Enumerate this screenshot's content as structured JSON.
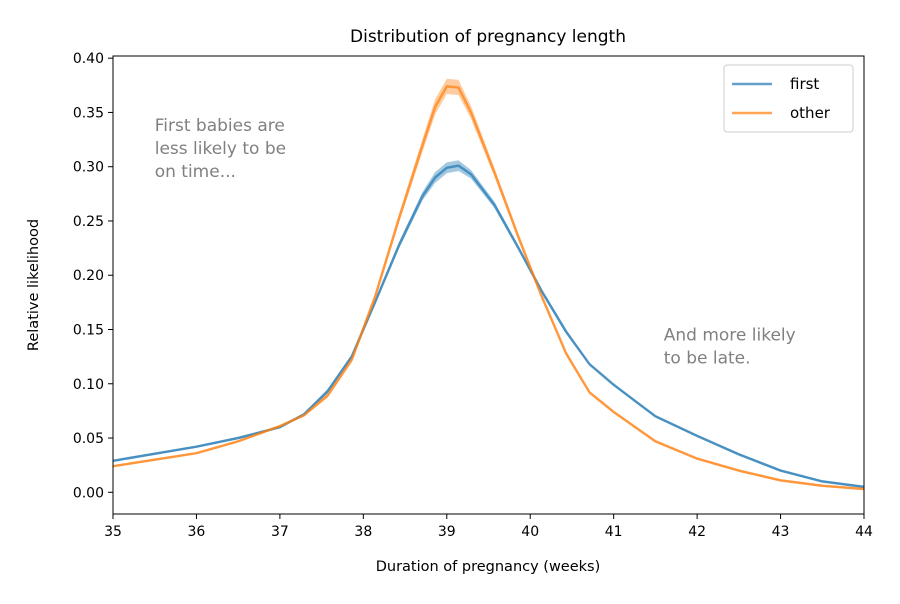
{
  "chart_data": {
    "type": "line",
    "title": "Distribution of pregnancy length",
    "xlabel": "Duration of pregnancy (weeks)",
    "ylabel": "Relative likelihood",
    "xlim": [
      35,
      44
    ],
    "ylim": [
      -0.02,
      0.402
    ],
    "xticks": [
      "35",
      "36",
      "37",
      "38",
      "39",
      "40",
      "41",
      "42",
      "43",
      "44"
    ],
    "yticks": [
      "0.00",
      "0.05",
      "0.10",
      "0.15",
      "0.20",
      "0.25",
      "0.30",
      "0.35",
      "0.40"
    ],
    "grid": false,
    "legend_position": "top-right",
    "x": [
      35,
      36,
      36.5,
      37,
      37.29,
      37.57,
      37.86,
      38.14,
      38.43,
      38.71,
      38.86,
      39,
      39.14,
      39.29,
      39.57,
      39.86,
      40.14,
      40.43,
      40.71,
      41,
      41.5,
      42,
      42.5,
      43,
      43.5,
      44
    ],
    "series": [
      {
        "name": "first",
        "color": "#1f77b4",
        "values": [
          0.029,
          0.042,
          0.05,
          0.06,
          0.072,
          0.093,
          0.125,
          0.175,
          0.228,
          0.273,
          0.29,
          0.299,
          0.301,
          0.293,
          0.265,
          0.225,
          0.185,
          0.148,
          0.118,
          0.099,
          0.07,
          0.052,
          0.035,
          0.02,
          0.01,
          0.005
        ],
        "ci_halfwidth": [
          0.001,
          0.001,
          0.001,
          0.001,
          0.001,
          0.002,
          0.002,
          0.002,
          0.003,
          0.004,
          0.005,
          0.005,
          0.005,
          0.004,
          0.003,
          0.002,
          0.002,
          0.002,
          0.001,
          0.001,
          0.001,
          0.001,
          0.001,
          0.001,
          0.001,
          0.001
        ]
      },
      {
        "name": "other",
        "color": "#ff7f0e",
        "values": [
          0.024,
          0.036,
          0.047,
          0.061,
          0.071,
          0.089,
          0.122,
          0.18,
          0.253,
          0.32,
          0.355,
          0.374,
          0.373,
          0.35,
          0.295,
          0.235,
          0.18,
          0.128,
          0.092,
          0.074,
          0.047,
          0.031,
          0.02,
          0.011,
          0.006,
          0.003
        ],
        "ci_halfwidth": [
          0.001,
          0.001,
          0.001,
          0.001,
          0.001,
          0.002,
          0.002,
          0.003,
          0.004,
          0.006,
          0.007,
          0.007,
          0.007,
          0.006,
          0.004,
          0.003,
          0.002,
          0.002,
          0.001,
          0.001,
          0.001,
          0.001,
          0.001,
          0.001,
          0.001,
          0.001
        ]
      }
    ],
    "annotations": [
      {
        "lines": [
          "First babies are",
          "less likely to be",
          "on time..."
        ],
        "x": 35.5,
        "y": 0.333,
        "color": "#808080"
      },
      {
        "lines": [
          "And more likely",
          "to be late."
        ],
        "x": 41.6,
        "y": 0.14,
        "color": "#808080"
      }
    ]
  }
}
